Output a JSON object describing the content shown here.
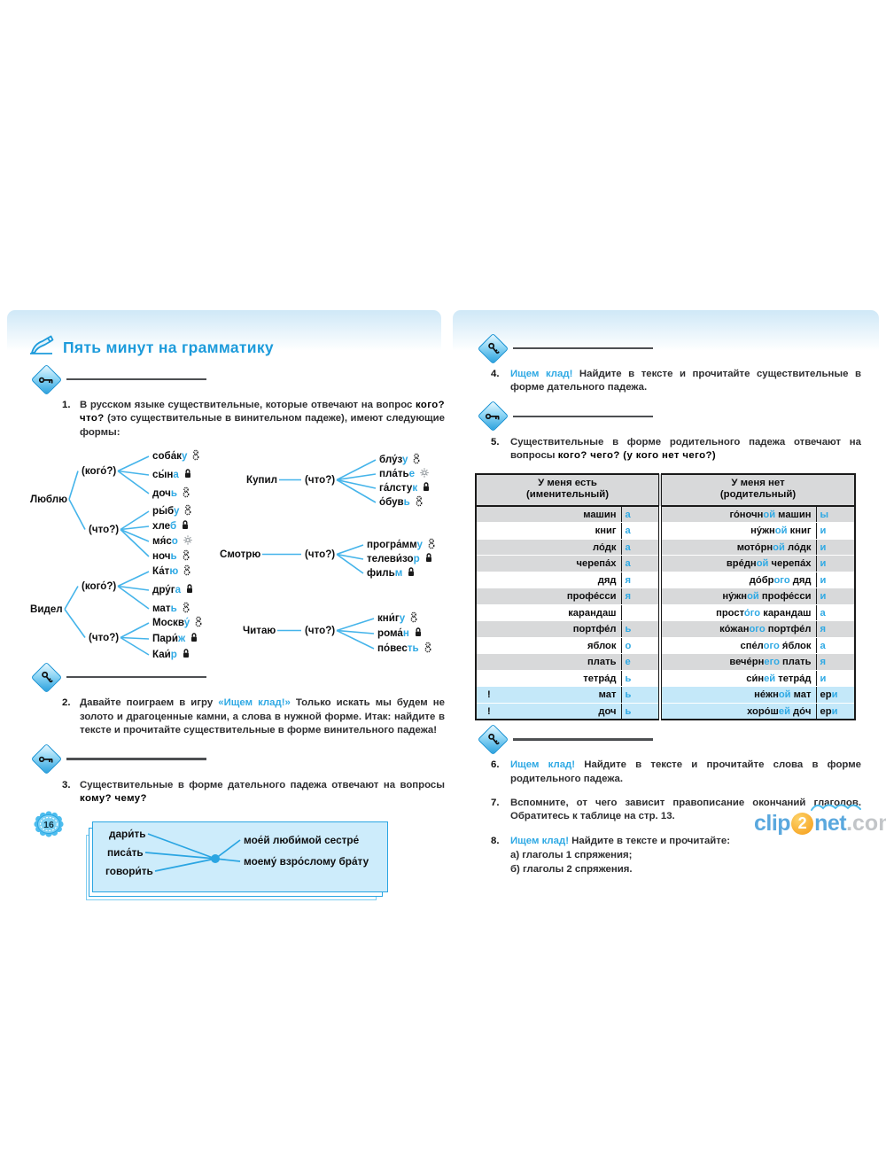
{
  "page": {
    "number": "16",
    "watermark": {
      "clip": "clip",
      "two": "2",
      "net": "net",
      "com": ".com"
    }
  },
  "header": {
    "title": "Пять минут на грамматику"
  },
  "icons": {
    "title_icon": "writing-hand-icon",
    "rule_icon_closed": "key-icon",
    "rule_icon_open": "key-tilted-icon",
    "gender": {
      "f": "feminine-icon",
      "m": "masculine-icon",
      "n": "neuter-sun-icon"
    }
  },
  "ex": {
    "e1": {
      "num": "1.",
      "segs": [
        {
          "t": "В русском языке существительные, которые отвечают на вопрос ",
          "c": "p"
        },
        {
          "t": "кого? что?",
          "c": "b"
        },
        {
          "t": " (это существительные в винительном падеже), имеют следующие формы:",
          "c": "p"
        }
      ]
    },
    "e2": {
      "num": "2.",
      "segs": [
        {
          "t": "Давайте поиграем в игру ",
          "c": "p"
        },
        {
          "t": "«Ищем клад!»",
          "c": "u"
        },
        {
          "t": " Только искать мы будем не золото и драгоценные камни, а слова в нужной форме. Итак: найдите в тексте и прочитайте существительные в форме винительного падежа!",
          "c": "p"
        }
      ]
    },
    "e3": {
      "num": "3.",
      "segs": [
        {
          "t": "Существительные в форме дательного падежа отвечают на вопросы ",
          "c": "p"
        },
        {
          "t": "кому? чему?",
          "c": "b"
        }
      ]
    },
    "e4": {
      "num": "4.",
      "segs": [
        {
          "t": "Ищем клад!",
          "c": "u"
        },
        {
          "t": " Найдите в тексте и прочитайте существительные в форме дательного падежа.",
          "c": "p"
        }
      ]
    },
    "e5": {
      "num": "5.",
      "segs": [
        {
          "t": "Существительные в форме родительного падежа отвечают на вопросы ",
          "c": "p"
        },
        {
          "t": "кого? чего? (у кого нет чего?)",
          "c": "b"
        }
      ]
    },
    "e6": {
      "num": "6.",
      "segs": [
        {
          "t": "Ищем клад!",
          "c": "u"
        },
        {
          "t": " Найдите в тексте и прочитайте слова в форме родительного падежа.",
          "c": "p"
        }
      ]
    },
    "e7": {
      "num": "7.",
      "segs": [
        {
          "t": "Вспомните, от чего зависит правописание окончаний глаголов. Обратитесь к таблице на стр. 13.",
          "c": "p"
        }
      ]
    },
    "e8": {
      "num": "8.",
      "segs": [
        {
          "t": "Ищем клад!",
          "c": "u"
        },
        {
          "t": " Найдите в тексте и прочитайте:",
          "c": "p"
        }
      ],
      "sub": [
        "а) глаголы 1 спряжения;",
        "б) глаголы 2 спряжения."
      ]
    }
  },
  "diagram": {
    "groups": [
      {
        "verb": "Люблю",
        "branches": [
          {
            "q": "(кого́?)",
            "words": [
              [
                "соба́к",
                "у",
                "f"
              ],
              [
                "сы́н",
                "а",
                "m"
              ],
              [
                "доч",
                "ь",
                "f"
              ]
            ]
          },
          {
            "q": "(что?)",
            "words": [
              [
                "ры́б",
                "у",
                "f"
              ],
              [
                "хле",
                "б",
                "m"
              ],
              [
                "мя́с",
                "о",
                "n"
              ],
              [
                "ноч",
                "ь",
                "f"
              ]
            ]
          }
        ]
      },
      {
        "verb": "Видел",
        "branches": [
          {
            "q": "(кого́?)",
            "words": [
              [
                "Ка́т",
                "ю",
                "f"
              ],
              [
                "дру́г",
                "а",
                "m"
              ],
              [
                "мат",
                "ь",
                "f"
              ]
            ]
          },
          {
            "q": "(что?)",
            "words": [
              [
                "Москв",
                "у́",
                "f"
              ],
              [
                "Пари́",
                "ж",
                "m"
              ],
              [
                "Каи́",
                "р",
                "m"
              ]
            ]
          }
        ]
      },
      {
        "verb": "Купил",
        "branches": [
          {
            "q": "(что?)",
            "words": [
              [
                "блу́з",
                "у",
                "f"
              ],
              [
                "пла́ть",
                "е",
                "n"
              ],
              [
                "га́лсту",
                "к",
                "m"
              ],
              [
                "о́був",
                "ь",
                "f"
              ]
            ]
          }
        ]
      },
      {
        "verb": "Смотрю",
        "branches": [
          {
            "q": "(что?)",
            "words": [
              [
                "програ́мм",
                "у",
                "f"
              ],
              [
                "телеви́зо",
                "р",
                "m"
              ],
              [
                "филь",
                "м",
                "m"
              ]
            ]
          }
        ]
      },
      {
        "verb": "Читаю",
        "branches": [
          {
            "q": "(что?)",
            "words": [
              [
                "кни́г",
                "у",
                "f"
              ],
              [
                "рома́",
                "н",
                "m"
              ],
              [
                "по́вес",
                "ть",
                "f"
              ]
            ]
          }
        ]
      }
    ]
  },
  "box": {
    "verbs": [
      "дари́ть",
      "писа́ть",
      "говори́ть"
    ],
    "phrases": [
      "мое́й люби́мой сестре́",
      "моему́ взро́слому бра́ту"
    ]
  },
  "table": {
    "headers": {
      "left_title": "У меня есть",
      "left_sub": "(именительный)",
      "right_title": "У меня нет",
      "right_sub": "(родительный)"
    },
    "rows": [
      {
        "bang": false,
        "stem": "машин",
        "end": "а",
        "right": [
          [
            "го́ночн",
            "d"
          ],
          [
            "ой",
            "b"
          ],
          [
            " машин",
            "d"
          ]
        ],
        "rend": [
          [
            "ы",
            "b"
          ]
        ],
        "bg": "g"
      },
      {
        "bang": false,
        "stem": "книг",
        "end": "а",
        "right": [
          [
            "ну́жн",
            "d"
          ],
          [
            "ой",
            "b"
          ],
          [
            " книг",
            "d"
          ]
        ],
        "rend": [
          [
            "и",
            "b"
          ]
        ],
        "bg": "w"
      },
      {
        "bang": false,
        "stem": "ло́дк",
        "end": "а",
        "right": [
          [
            "мото́рн",
            "d"
          ],
          [
            "ой",
            "b"
          ],
          [
            " ло́дк",
            "d"
          ]
        ],
        "rend": [
          [
            "и",
            "b"
          ]
        ],
        "bg": "g"
      },
      {
        "bang": false,
        "stem": "черепа́х",
        "end": "а",
        "right": [
          [
            "вре́дн",
            "d"
          ],
          [
            "ой",
            "b"
          ],
          [
            " черепа́х",
            "d"
          ]
        ],
        "rend": [
          [
            "и",
            "b"
          ]
        ],
        "bg": "g"
      },
      {
        "bang": false,
        "stem": "дяд",
        "end": "я",
        "right": [
          [
            "до́бр",
            "d"
          ],
          [
            "ого",
            "b"
          ],
          [
            " дяд",
            "d"
          ]
        ],
        "rend": [
          [
            "и",
            "b"
          ]
        ],
        "bg": "w"
      },
      {
        "bang": false,
        "stem": "профе́сси",
        "end": "я",
        "right": [
          [
            "ну́жн",
            "d"
          ],
          [
            "ой",
            "b"
          ],
          [
            " профе́сси",
            "d"
          ]
        ],
        "rend": [
          [
            "и",
            "b"
          ]
        ],
        "bg": "g"
      },
      {
        "bang": false,
        "stem": "карандаш",
        "end": "",
        "right": [
          [
            "прост",
            "d"
          ],
          [
            "о́го",
            "b"
          ],
          [
            " карандаш",
            "d"
          ]
        ],
        "rend": [
          [
            "а",
            "b"
          ]
        ],
        "bg": "w"
      },
      {
        "bang": false,
        "stem": "портфе́л",
        "end": "ь",
        "right": [
          [
            "ко́жан",
            "d"
          ],
          [
            "ого",
            "b"
          ],
          [
            " портфе́л",
            "d"
          ]
        ],
        "rend": [
          [
            "я",
            "b"
          ]
        ],
        "bg": "g"
      },
      {
        "bang": false,
        "stem": "яблок",
        "end": "о",
        "right": [
          [
            "спе́л",
            "d"
          ],
          [
            "ого",
            "b"
          ],
          [
            " я́блок",
            "d"
          ]
        ],
        "rend": [
          [
            "а",
            "b"
          ]
        ],
        "bg": "w"
      },
      {
        "bang": false,
        "stem": "плать",
        "end": "е",
        "right": [
          [
            "вече́рн",
            "d"
          ],
          [
            "его",
            "b"
          ],
          [
            " плать",
            "d"
          ]
        ],
        "rend": [
          [
            "я",
            "b"
          ]
        ],
        "bg": "g"
      },
      {
        "bang": false,
        "stem": "тетра́д",
        "end": "ь",
        "right": [
          [
            "си́н",
            "d"
          ],
          [
            "ей",
            "b"
          ],
          [
            " тетра́д",
            "d"
          ]
        ],
        "rend": [
          [
            "и",
            "b"
          ]
        ],
        "bg": "w"
      },
      {
        "bang": true,
        "stem": "мат",
        "end": "ь",
        "right": [
          [
            "не́жн",
            "d"
          ],
          [
            "ой",
            "b"
          ],
          [
            " мат",
            "d"
          ]
        ],
        "rend": [
          [
            "ер",
            "d"
          ],
          [
            "и",
            "b"
          ]
        ],
        "bg": "bl"
      },
      {
        "bang": true,
        "stem": "доч",
        "end": "ь",
        "right": [
          [
            "хоро́ш",
            "d"
          ],
          [
            "ей",
            "b"
          ],
          [
            " до́ч",
            "d"
          ]
        ],
        "rend": [
          [
            "ер",
            "d"
          ],
          [
            "и",
            "b"
          ]
        ],
        "bg": "bl"
      }
    ]
  }
}
